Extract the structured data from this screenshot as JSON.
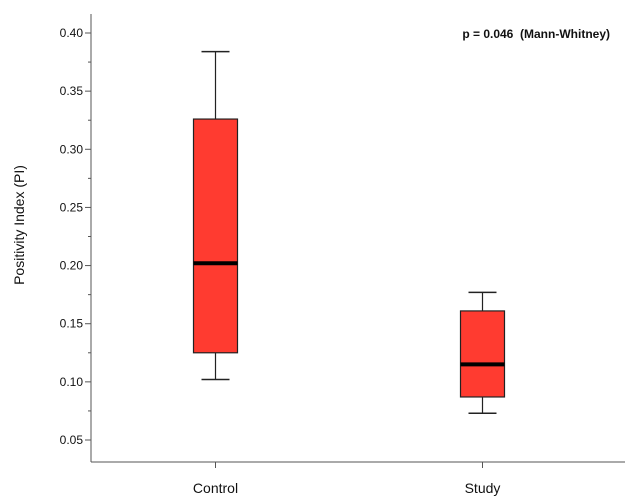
{
  "chart_data": {
    "type": "box",
    "title": "",
    "xlabel": "",
    "ylabel": "Positivity Index (PI)",
    "ylim": [
      0.04,
      0.425
    ],
    "yticks": [
      0.05,
      0.1,
      0.15,
      0.2,
      0.25,
      0.3,
      0.35,
      0.4
    ],
    "ytick_labels": [
      "0.05",
      "0.10",
      "0.15",
      "0.20",
      "0.25",
      "0.30",
      "0.35",
      "0.40"
    ],
    "grid": false,
    "annotation": "p = 0.046  (Mann-Whitney)",
    "box_color": "#ff3b30",
    "categories": [
      "Control",
      "Study"
    ],
    "boxes": [
      {
        "category": "Control",
        "min": 0.102,
        "q1": 0.125,
        "median": 0.202,
        "q3": 0.326,
        "max": 0.384
      },
      {
        "category": "Study",
        "min": 0.073,
        "q1": 0.087,
        "median": 0.115,
        "q3": 0.161,
        "max": 0.177
      }
    ]
  }
}
